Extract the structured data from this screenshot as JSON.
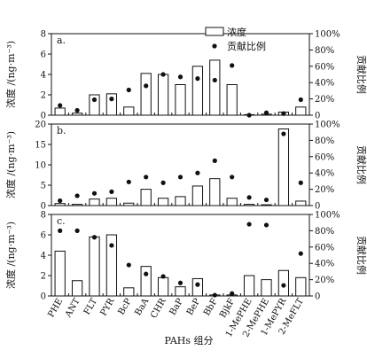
{
  "chart_data": {
    "type": "bar",
    "categories": [
      "PHE",
      "ANT",
      "FLT",
      "PYR",
      "BcP",
      "BaA",
      "CHR",
      "BaP",
      "BeP",
      "BbF",
      "BjkF",
      "1-MePHE",
      "2-MePHE",
      "1-MePYR",
      "2-MeFLT"
    ],
    "xlabel": "PAHs 组分",
    "legend": {
      "placement": "top-right",
      "bar_label": "浓度",
      "dot_label": "贡献比例"
    },
    "panels": [
      {
        "label": "a.",
        "ylabel": "浓度 /(ng·m⁻³)",
        "ylabel2": "贡献比例",
        "ylim": [
          0,
          8
        ],
        "yticks": [
          0,
          2,
          4,
          6,
          8
        ],
        "y2lim": [
          0,
          100
        ],
        "y2ticks": [
          "0",
          "20%",
          "40%",
          "60%",
          "80%",
          "100%"
        ],
        "series": [
          {
            "kind": "bar",
            "values": [
              0.7,
              0.2,
              2.0,
              2.1,
              0.8,
              4.1,
              4.0,
              3.0,
              4.8,
              5.4,
              3.0,
              0,
              0.1,
              0.3,
              0.8
            ]
          },
          {
            "kind": "dot",
            "values": [
              12,
              6,
              19,
              20,
              31,
              36,
              50,
              47,
              45,
              43,
              61,
              0,
              3,
              2,
              19
            ]
          }
        ]
      },
      {
        "label": "b.",
        "ylabel": "浓度 /(ng·m⁻³)",
        "ylabel2": "贡献比例",
        "ylim": [
          0,
          20
        ],
        "yticks": [
          0,
          5,
          10,
          15,
          20
        ],
        "y2lim": [
          0,
          100
        ],
        "y2ticks": [
          "0",
          "20%",
          "40%",
          "60%",
          "80%",
          "100%"
        ],
        "series": [
          {
            "kind": "bar",
            "values": [
              0.5,
              0.3,
              1.6,
              1.8,
              0.6,
              4.0,
              1.8,
              2.2,
              4.8,
              6.6,
              1.8,
              0.3,
              0.2,
              18.8,
              1.1
            ]
          },
          {
            "kind": "dot",
            "values": [
              6,
              12,
              15,
              17,
              29,
              35,
              28,
              35,
              40,
              55,
              35,
              10,
              7,
              88,
              28
            ]
          }
        ]
      },
      {
        "label": "c.",
        "ylabel": "浓度 /(ng·m⁻³)",
        "ylabel2": "贡献比例",
        "ylim": [
          0,
          8
        ],
        "yticks": [
          0,
          2,
          4,
          6,
          8
        ],
        "y2lim": [
          0,
          100
        ],
        "y2ticks": [
          "0",
          "20%",
          "40%",
          "60%",
          "80%",
          "100%"
        ],
        "series": [
          {
            "kind": "bar",
            "values": [
              4.4,
              1.5,
              5.8,
              6.0,
              0.8,
              2.9,
              1.8,
              0.9,
              1.7,
              0.1,
              0.1,
              2.0,
              1.6,
              2.5,
              1.8
            ]
          },
          {
            "kind": "dot",
            "values": [
              80,
              80,
              72,
              62,
              38,
              27,
              24,
              16,
              14,
              1,
              3,
              88,
              87,
              13,
              52
            ]
          }
        ]
      }
    ]
  }
}
